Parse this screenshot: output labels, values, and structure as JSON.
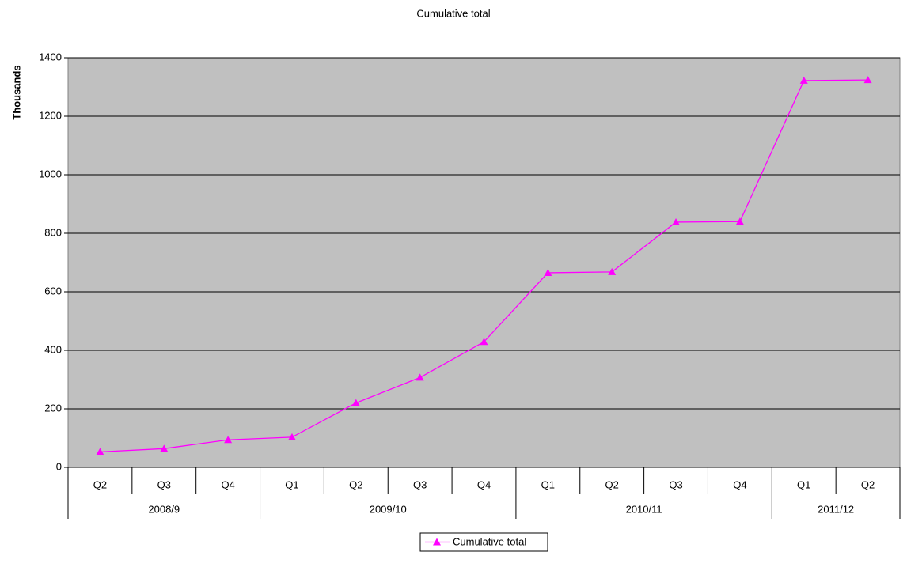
{
  "chart_data": {
    "type": "line",
    "title": "Cumulative total",
    "y_label": "Thousands",
    "groups": [
      {
        "name": "2008/9",
        "quarters": [
          "Q2",
          "Q3",
          "Q4"
        ]
      },
      {
        "name": "2009/10",
        "quarters": [
          "Q1",
          "Q2",
          "Q3",
          "Q4"
        ]
      },
      {
        "name": "2010/11",
        "quarters": [
          "Q1",
          "Q2",
          "Q3",
          "Q4"
        ]
      },
      {
        "name": "2011/12",
        "quarters": [
          "Q1",
          "Q2"
        ]
      }
    ],
    "series": [
      {
        "name": "Cumulative total",
        "color": "#ff00ff",
        "values": [
          53,
          64,
          94,
          103,
          220,
          307,
          429,
          665,
          668,
          838,
          840,
          1322,
          1324
        ]
      }
    ],
    "ylim": [
      0,
      1400
    ],
    "yticks": [
      0,
      200,
      400,
      600,
      800,
      1000,
      1200,
      1400
    ],
    "grid": true,
    "plot_background": "#c0c0c0",
    "legend": "bottom"
  }
}
